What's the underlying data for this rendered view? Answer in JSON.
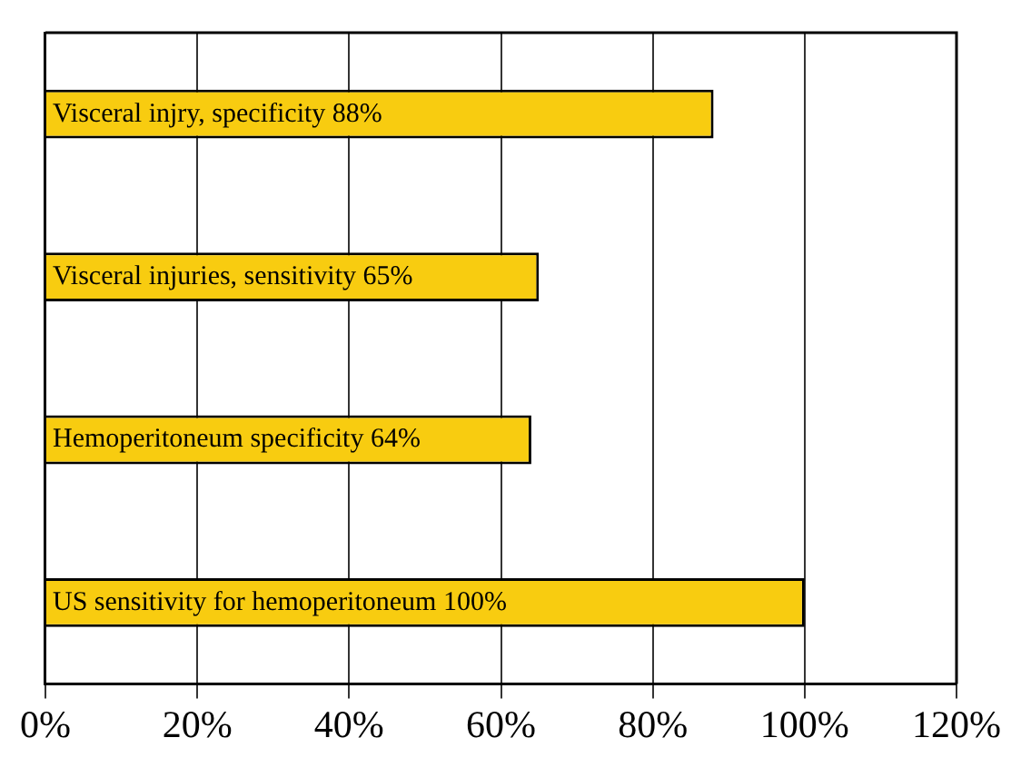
{
  "chart_data": {
    "type": "bar",
    "orientation": "horizontal",
    "categories": [
      "Visceral injry, specificity 88%",
      "Visceral injuries, sensitivity 65%",
      "Hemoperitoneum specificity 64%",
      "US sensitivity for hemoperitoneum 100%"
    ],
    "values": [
      88,
      65,
      64,
      100
    ],
    "color": "#f8cc10",
    "xlim": [
      0,
      120
    ],
    "xticks": [
      {
        "value": 0,
        "label": "0%"
      },
      {
        "value": 20,
        "label": "20%"
      },
      {
        "value": 40,
        "label": "40%"
      },
      {
        "value": 60,
        "label": "60%"
      },
      {
        "value": 80,
        "label": "80%"
      },
      {
        "value": 100,
        "label": "100%"
      },
      {
        "value": 120,
        "label": "120%"
      }
    ],
    "grid": "x",
    "tick_labels": "x"
  }
}
